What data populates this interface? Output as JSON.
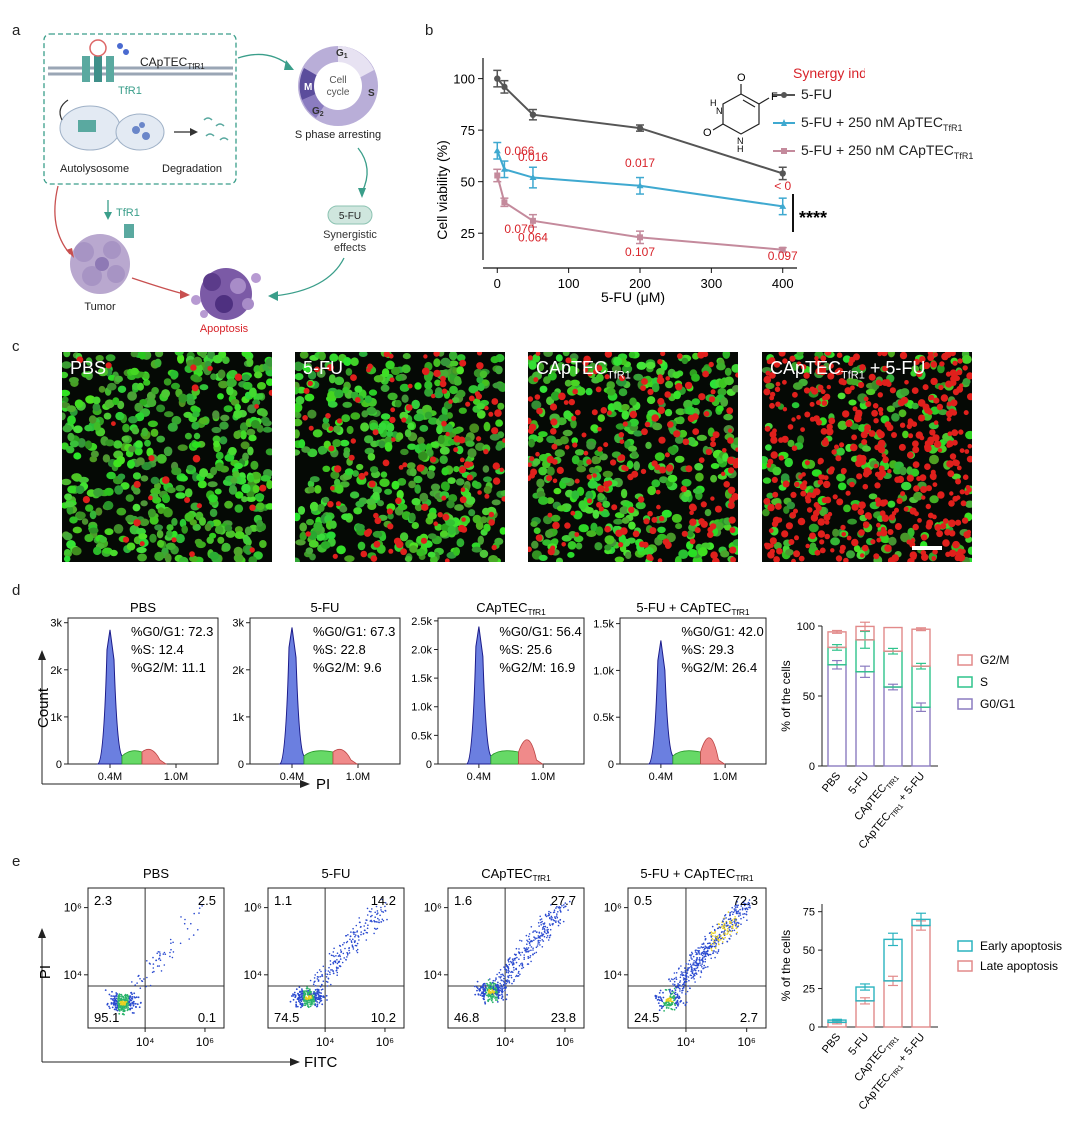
{
  "panels": {
    "a": "a",
    "b": "b",
    "c": "c",
    "d": "d",
    "e": "e"
  },
  "schematic": {
    "captec_label": "CApTEC",
    "captec_sub": "TfR1",
    "tfr1_label": "TfR1",
    "tfr1_label2": "TfR1",
    "autolysosome": "Autolysosome",
    "degradation": "Degradation",
    "cell_cycle_line1": "Cell",
    "cell_cycle_line2": "cycle",
    "phase_g1": "G",
    "phase_g1_sub": "1",
    "phase_s": "S",
    "phase_m": "M",
    "phase_g2": "G",
    "phase_g2_sub": "2",
    "s_phase_arresting": "S phase arresting",
    "fu_badge": "5-FU",
    "synergistic_line1": "Synergistic",
    "synergistic_line2": "effects",
    "tumor": "Tumor",
    "apoptosis": "Apoptosis"
  },
  "viability_chart": {
    "legend_title": "Synergy index",
    "ylabel": "Cell viability (%)",
    "xlabel": "5-FU (μM)",
    "significance": "****",
    "molecule_atoms": {
      "o1": "O",
      "o2": "O",
      "f": "F",
      "h1": "H",
      "n1": "N",
      "h2": "H",
      "n2": "N"
    }
  },
  "chart_data": [
    {
      "type": "line",
      "title": "",
      "xlabel": "5-FU (μM)",
      "ylabel": "Cell viability (%)",
      "x": [
        0,
        10,
        50,
        200,
        400
      ],
      "xlim": [
        -20,
        420
      ],
      "ylim": [
        12,
        110
      ],
      "xticks": [
        "0",
        "100",
        "200",
        "300",
        "400"
      ],
      "yticks": [
        "25",
        "50",
        "75",
        "100"
      ],
      "legend_title": "Synergy index",
      "series": [
        {
          "name": "5-FU",
          "name_sub": "",
          "color": "#555555",
          "values": [
            100,
            96,
            82.5,
            76,
            54
          ],
          "errors": [
            4,
            3,
            2.5,
            1.5,
            3
          ]
        },
        {
          "name": "5-FU + 250 nM ApTEC",
          "name_sub": "TfR1",
          "color": "#3fa9d0",
          "values": [
            65,
            56,
            52,
            48,
            38
          ],
          "errors": [
            4,
            4,
            5,
            4,
            4
          ]
        },
        {
          "name": "5-FU + 250 nM CApTEC",
          "name_sub": "TfR1",
          "color": "#c48a9c",
          "values": [
            53,
            40,
            31,
            23,
            17
          ],
          "errors": [
            3,
            2,
            3,
            3,
            1
          ]
        }
      ],
      "annotations": [
        {
          "text": "0.066",
          "x": 10,
          "y": 63
        },
        {
          "text": "0.016",
          "x": 50,
          "y": 60
        },
        {
          "text": "0.017",
          "x": 200,
          "y": 57
        },
        {
          "text": "< 0",
          "x": 400,
          "y": 46
        },
        {
          "text": "0.070",
          "x": 10,
          "y": 25
        },
        {
          "text": "0.064",
          "x": 50,
          "y": 21
        },
        {
          "text": "0.107",
          "x": 200,
          "y": 14
        },
        {
          "text": "0.097",
          "x": 400,
          "y": 12
        }
      ]
    },
    {
      "type": "area",
      "title": "Cell cycle histograms",
      "xlabel": "PI",
      "ylabel": "Count",
      "xticks": [
        "0.4M",
        "1.0M"
      ],
      "series": [
        {
          "name": "PBS",
          "yticks": [
            "0",
            "1k",
            "2k",
            "3k"
          ],
          "ymax": 3100,
          "peak": 2850,
          "stats": [
            "%G0/G1: 72.3",
            "%S: 12.4",
            "%G2/M: 11.1"
          ]
        },
        {
          "name": "5-FU",
          "yticks": [
            "0",
            "1k",
            "2k",
            "3k"
          ],
          "ymax": 3100,
          "peak": 2900,
          "stats": [
            "%G0/G1: 67.3",
            "%S: 22.8",
            "%G2/M: 9.6"
          ]
        },
        {
          "name": "CApTEC",
          "name_sub": "TfR1",
          "yticks": [
            "0",
            "0.5k",
            "1.0k",
            "1.5k",
            "2.0k",
            "2.5k"
          ],
          "ymax": 2550,
          "peak": 2400,
          "stats": [
            "%G0/G1: 56.4",
            "%S: 25.6",
            "%G2/M: 16.9"
          ]
        },
        {
          "name": "5-FU + CApTEC",
          "name_sub": "TfR1",
          "yticks": [
            "0",
            "0.5k",
            "1.0k",
            "1.5k"
          ],
          "ymax": 1560,
          "peak": 1320,
          "stats": [
            "%G0/G1: 42.0",
            "%S: 29.3",
            "%G2/M: 26.4"
          ]
        }
      ]
    },
    {
      "type": "bar",
      "title": "",
      "ylabel": "% of the cells",
      "ylim": [
        0,
        100
      ],
      "yticks": [
        "0",
        "50",
        "100"
      ],
      "categories": [
        "PBS",
        "5-FU",
        "CApTEC",
        "CApTEC + 5-FU"
      ],
      "category_subs": [
        "",
        "",
        "TfR1",
        "TfR1"
      ],
      "series": [
        {
          "name": "G0/G1",
          "color": "#8b7cc0",
          "values": [
            72.3,
            67.3,
            56.4,
            42.0
          ],
          "errors": [
            3,
            4,
            2,
            3
          ]
        },
        {
          "name": "S",
          "color": "#2fc38c",
          "values": [
            12.4,
            22.8,
            25.6,
            29.3
          ],
          "errors": [
            2,
            6,
            2,
            2
          ]
        },
        {
          "name": "G2/M",
          "color": "#e28a8a",
          "values": [
            11.1,
            9.6,
            16.9,
            26.4
          ],
          "errors": [
            1,
            3,
            0,
            1
          ]
        }
      ]
    },
    {
      "type": "scatter",
      "title": "Annexin V / PI flow cytometry",
      "xlabel": "FITC",
      "ylabel": "PI",
      "xticks": [
        "10⁴",
        "10⁶"
      ],
      "yticks": [
        "10⁴",
        "10⁶"
      ],
      "series": [
        {
          "name": "PBS",
          "quadrants": {
            "ul": "2.3",
            "ur": "2.5",
            "ll": "95.1",
            "lr": "0.1"
          }
        },
        {
          "name": "5-FU",
          "quadrants": {
            "ul": "1.1",
            "ur": "14.2",
            "ll": "74.5",
            "lr": "10.2"
          }
        },
        {
          "name": "CApTEC",
          "name_sub": "TfR1",
          "quadrants": {
            "ul": "1.6",
            "ur": "27.7",
            "ll": "46.8",
            "lr": "23.8"
          }
        },
        {
          "name": "5-FU + CApTEC",
          "name_sub": "TfR1",
          "quadrants": {
            "ul": "0.5",
            "ur": "72.3",
            "ll": "24.5",
            "lr": "2.7"
          }
        }
      ]
    },
    {
      "type": "bar",
      "title": "",
      "ylabel": "% of the cells",
      "ylim": [
        0,
        80
      ],
      "yticks": [
        "0",
        "25",
        "50",
        "75"
      ],
      "categories": [
        "PBS",
        "5-FU",
        "CApTEC",
        "CApTEC + 5-FU"
      ],
      "category_subs": [
        "",
        "",
        "TfR1",
        "TfR1"
      ],
      "series": [
        {
          "name": "Late apoptosis",
          "color": "#e28a8a",
          "values": [
            3,
            17,
            30,
            66
          ],
          "errors": [
            1,
            2,
            3,
            3
          ]
        },
        {
          "name": "Early apoptosis",
          "color": "#2ab3bf",
          "values": [
            1.5,
            9,
            27,
            4
          ],
          "errors": [
            0.5,
            2,
            4,
            4
          ]
        }
      ]
    }
  ],
  "micrographs": [
    {
      "label": "PBS",
      "label_sub": "",
      "label_tail": "",
      "red": 25,
      "green": 520,
      "seed": 11
    },
    {
      "label": "5-FU",
      "label_sub": "",
      "label_tail": "",
      "red": 110,
      "green": 470,
      "seed": 23
    },
    {
      "label": "CApTEC",
      "label_sub": "TfR1",
      "label_tail": "",
      "red": 190,
      "green": 420,
      "seed": 37
    },
    {
      "label": "CApTEC",
      "label_sub": "TfR1",
      "label_tail": " + 5-FU",
      "red": 430,
      "green": 230,
      "seed": 53
    }
  ],
  "colors": {
    "red": "#e0201c",
    "green": "#3ad23a",
    "legend_red": "#d8232a",
    "teal": "#3a9e8a"
  }
}
